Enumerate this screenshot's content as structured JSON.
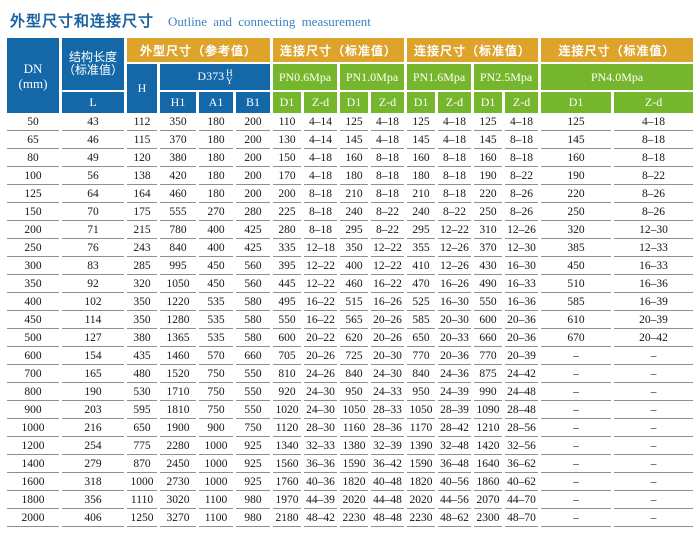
{
  "title": {
    "zh": "外型尺寸和连接尺寸",
    "en": "Outline and connecting measurement"
  },
  "colors": {
    "header_blue": "#1568a8",
    "header_orange": "#dda32a",
    "header_green": "#76b62c",
    "title_zh_blue": "#1a62a2",
    "title_en_blue": "#4081c0",
    "row_line_gray": "#8f8f8f"
  },
  "header": {
    "dn_line1": "DN",
    "dn_line2": "(mm)",
    "struct_line1": "结构长度",
    "struct_line2": "（标准值）",
    "l": "L",
    "outline_group": "外型尺寸（参考值）",
    "connect_group": "连接尺寸（标准值）",
    "h": "H",
    "d373": "D373",
    "d373_top": "H",
    "d373_bottom": "Y",
    "h1": "H1",
    "a1": "A1",
    "b1": "B1",
    "pn_labels": [
      "PN0.6Mpa",
      "PN1.0Mpa",
      "PN1.6Mpa",
      "PN2.5Mpa",
      "PN4.0Mpa"
    ],
    "d1": "D1",
    "zd": "Z-d"
  },
  "columns": [
    "DN(mm)",
    "L",
    "H",
    "H1",
    "A1",
    "B1",
    "PN0.6 D1",
    "PN0.6 Z-d",
    "PN1.0 D1",
    "PN1.0 Z-d",
    "PN1.6 D1",
    "PN1.6 Z-d",
    "PN2.5 D1",
    "PN2.5 Z-d",
    "PN4.0 D1",
    "PN4.0 Z-d"
  ],
  "rows": [
    [
      "50",
      "43",
      "112",
      "350",
      "180",
      "200",
      "110",
      "4–14",
      "125",
      "4–18",
      "125",
      "4–18",
      "125",
      "4–18",
      "125",
      "4–18"
    ],
    [
      "65",
      "46",
      "115",
      "370",
      "180",
      "200",
      "130",
      "4–14",
      "145",
      "4–18",
      "145",
      "4–18",
      "145",
      "8–18",
      "145",
      "8–18"
    ],
    [
      "80",
      "49",
      "120",
      "380",
      "180",
      "200",
      "150",
      "4–18",
      "160",
      "8–18",
      "160",
      "8–18",
      "160",
      "8–18",
      "160",
      "8–18"
    ],
    [
      "100",
      "56",
      "138",
      "420",
      "180",
      "200",
      "170",
      "4–18",
      "180",
      "8–18",
      "180",
      "8–18",
      "190",
      "8–22",
      "190",
      "8–22"
    ],
    [
      "125",
      "64",
      "164",
      "460",
      "180",
      "200",
      "200",
      "8–18",
      "210",
      "8–18",
      "210",
      "8–18",
      "220",
      "8–26",
      "220",
      "8–26"
    ],
    [
      "150",
      "70",
      "175",
      "555",
      "270",
      "280",
      "225",
      "8–18",
      "240",
      "8–22",
      "240",
      "8–22",
      "250",
      "8–26",
      "250",
      "8–26"
    ],
    [
      "200",
      "71",
      "215",
      "780",
      "400",
      "425",
      "280",
      "8–18",
      "295",
      "8–22",
      "295",
      "12–22",
      "310",
      "12–26",
      "320",
      "12–30"
    ],
    [
      "250",
      "76",
      "243",
      "840",
      "400",
      "425",
      "335",
      "12–18",
      "350",
      "12–22",
      "355",
      "12–26",
      "370",
      "12–30",
      "385",
      "12–33"
    ],
    [
      "300",
      "83",
      "285",
      "995",
      "450",
      "560",
      "395",
      "12–22",
      "400",
      "12–22",
      "410",
      "12–26",
      "430",
      "16–30",
      "450",
      "16–33"
    ],
    [
      "350",
      "92",
      "320",
      "1050",
      "450",
      "560",
      "445",
      "12–22",
      "460",
      "16–22",
      "470",
      "16–26",
      "490",
      "16–33",
      "510",
      "16–36"
    ],
    [
      "400",
      "102",
      "350",
      "1220",
      "535",
      "580",
      "495",
      "16–22",
      "515",
      "16–26",
      "525",
      "16–30",
      "550",
      "16–36",
      "585",
      "16–39"
    ],
    [
      "450",
      "114",
      "350",
      "1280",
      "535",
      "580",
      "550",
      "16–22",
      "565",
      "20–26",
      "585",
      "20–30",
      "600",
      "20–36",
      "610",
      "20–39"
    ],
    [
      "500",
      "127",
      "380",
      "1365",
      "535",
      "580",
      "600",
      "20–22",
      "620",
      "20–26",
      "650",
      "20–33",
      "660",
      "20–36",
      "670",
      "20–42"
    ],
    [
      "600",
      "154",
      "435",
      "1460",
      "570",
      "660",
      "705",
      "20–26",
      "725",
      "20–30",
      "770",
      "20–36",
      "770",
      "20–39",
      "–",
      "–"
    ],
    [
      "700",
      "165",
      "480",
      "1520",
      "750",
      "550",
      "810",
      "24–26",
      "840",
      "24–30",
      "840",
      "24–36",
      "875",
      "24–42",
      "–",
      "–"
    ],
    [
      "800",
      "190",
      "530",
      "1710",
      "750",
      "550",
      "920",
      "24–30",
      "950",
      "24–33",
      "950",
      "24–39",
      "990",
      "24–48",
      "–",
      "–"
    ],
    [
      "900",
      "203",
      "595",
      "1810",
      "750",
      "550",
      "1020",
      "24–30",
      "1050",
      "28–33",
      "1050",
      "28–39",
      "1090",
      "28–48",
      "–",
      "–"
    ],
    [
      "1000",
      "216",
      "650",
      "1900",
      "900",
      "750",
      "1120",
      "28–30",
      "1160",
      "28–36",
      "1170",
      "28–42",
      "1210",
      "28–56",
      "–",
      "–"
    ],
    [
      "1200",
      "254",
      "775",
      "2280",
      "1000",
      "925",
      "1340",
      "32–33",
      "1380",
      "32–39",
      "1390",
      "32–48",
      "1420",
      "32–56",
      "–",
      "–"
    ],
    [
      "1400",
      "279",
      "870",
      "2450",
      "1000",
      "925",
      "1560",
      "36–36",
      "1590",
      "36–42",
      "1590",
      "36–48",
      "1640",
      "36–62",
      "–",
      "–"
    ],
    [
      "1600",
      "318",
      "1000",
      "2730",
      "1000",
      "925",
      "1760",
      "40–36",
      "1820",
      "40–48",
      "1820",
      "40–56",
      "1860",
      "40–62",
      "–",
      "–"
    ],
    [
      "1800",
      "356",
      "1110",
      "3020",
      "1100",
      "980",
      "1970",
      "44–39",
      "2020",
      "44–48",
      "2020",
      "44–56",
      "2070",
      "44–70",
      "–",
      "–"
    ],
    [
      "2000",
      "406",
      "1250",
      "3270",
      "1100",
      "980",
      "2180",
      "48–42",
      "2230",
      "48–48",
      "2230",
      "48–62",
      "2300",
      "48–70",
      "–",
      "–"
    ]
  ]
}
